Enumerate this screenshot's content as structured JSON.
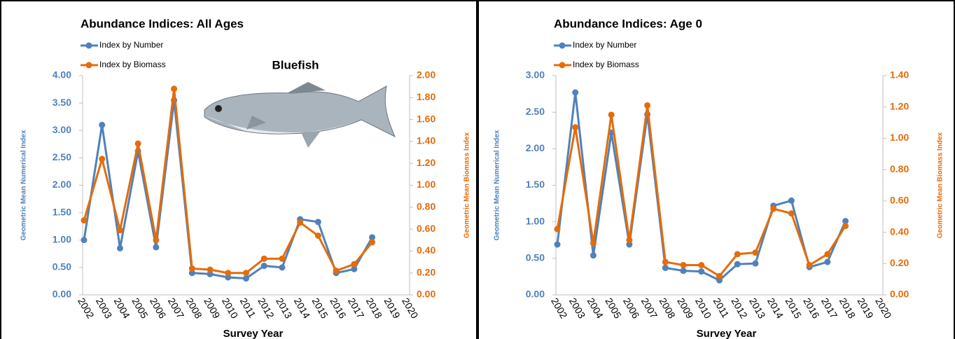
{
  "chart_data": [
    {
      "type": "line",
      "title": "Abundance Indices:  All Ages",
      "annotation": "Bluefish",
      "x_label": "Survey Year",
      "y_label": "Geometric Mean Numerical Index",
      "y2_label": "Geometric Mean Biomass Index",
      "categories": [
        "2002",
        "2003",
        "2004",
        "2005",
        "2006",
        "2007",
        "2008",
        "2009",
        "2010",
        "2011",
        "2012",
        "2013",
        "2014",
        "2015",
        "2016",
        "2017",
        "2018",
        "2019",
        "2020"
      ],
      "series": [
        {
          "name": "Index by Number",
          "color": "#4f81bd",
          "axis": "y",
          "values": [
            1.0,
            3.1,
            0.85,
            2.62,
            0.87,
            3.55,
            0.4,
            0.38,
            0.32,
            0.3,
            0.53,
            0.5,
            1.38,
            1.33,
            0.4,
            0.47,
            1.05,
            null,
            null
          ]
        },
        {
          "name": "Index by Biomass",
          "color": "#e46c0a",
          "axis": "y2",
          "values": [
            0.68,
            1.24,
            0.59,
            1.38,
            0.5,
            1.88,
            0.24,
            0.23,
            0.2,
            0.2,
            0.33,
            0.33,
            0.66,
            0.54,
            0.22,
            0.28,
            0.48,
            null,
            null
          ]
        }
      ],
      "ylim": [
        0,
        4
      ],
      "yticks": [
        {
          "value": 0,
          "label": "0.00"
        },
        {
          "value": 0.5,
          "label": "0.50"
        },
        {
          "value": 1,
          "label": "1.00"
        },
        {
          "value": 1.5,
          "label": "1.50"
        },
        {
          "value": 2,
          "label": "2.00"
        },
        {
          "value": 2.5,
          "label": "2.50"
        },
        {
          "value": 3,
          "label": "3.00"
        },
        {
          "value": 3.5,
          "label": "3.50"
        },
        {
          "value": 4,
          "label": "4.00"
        }
      ],
      "y2lim": [
        0,
        2
      ],
      "y2ticks": [
        {
          "value": 0,
          "label": "0.00"
        },
        {
          "value": 0.2,
          "label": "0.20"
        },
        {
          "value": 0.4,
          "label": "0.40"
        },
        {
          "value": 0.6,
          "label": "0.60"
        },
        {
          "value": 0.8,
          "label": "0.80"
        },
        {
          "value": 1,
          "label": "1.00"
        },
        {
          "value": 1.2,
          "label": "1.20"
        },
        {
          "value": 1.4,
          "label": "1.40"
        },
        {
          "value": 1.6,
          "label": "1.60"
        },
        {
          "value": 1.8,
          "label": "1.80"
        },
        {
          "value": 2,
          "label": "2.00"
        }
      ]
    },
    {
      "type": "line",
      "title": "Abundance Indices:  Age 0",
      "x_label": "Survey Year",
      "y_label": "Geometric Mean Numerical Index",
      "y2_label": "Geometric Mean Biomass Index",
      "categories": [
        "2002",
        "2003",
        "2004",
        "2005",
        "2006",
        "2007",
        "2008",
        "2009",
        "2010",
        "2011",
        "2012",
        "2013",
        "2014",
        "2015",
        "2016",
        "2017",
        "2018",
        "2019",
        "2020"
      ],
      "series": [
        {
          "name": "Index by Number",
          "color": "#4f81bd",
          "axis": "y",
          "values": [
            0.69,
            2.77,
            0.54,
            2.22,
            0.69,
            2.47,
            0.37,
            0.33,
            0.32,
            0.2,
            0.42,
            0.43,
            1.22,
            1.29,
            0.38,
            0.45,
            1.01,
            null,
            null
          ]
        },
        {
          "name": "Index by Biomass",
          "color": "#e46c0a",
          "axis": "y2",
          "values": [
            0.42,
            1.07,
            0.33,
            1.15,
            0.35,
            1.21,
            0.21,
            0.19,
            0.19,
            0.12,
            0.26,
            0.27,
            0.55,
            0.52,
            0.19,
            0.26,
            0.44,
            null,
            null
          ]
        }
      ],
      "ylim": [
        0,
        3
      ],
      "yticks": [
        {
          "value": 0,
          "label": "0.00"
        },
        {
          "value": 0.5,
          "label": "0.50"
        },
        {
          "value": 1,
          "label": "1.00"
        },
        {
          "value": 1.5,
          "label": "1.50"
        },
        {
          "value": 2,
          "label": "2.00"
        },
        {
          "value": 2.5,
          "label": "2.50"
        },
        {
          "value": 3,
          "label": "3.00"
        }
      ],
      "y2lim": [
        0,
        1.4
      ],
      "y2ticks": [
        {
          "value": 0,
          "label": "0.00"
        },
        {
          "value": 0.2,
          "label": "0.20"
        },
        {
          "value": 0.4,
          "label": "0.40"
        },
        {
          "value": 0.6,
          "label": "0.60"
        },
        {
          "value": 0.8,
          "label": "0.80"
        },
        {
          "value": 1,
          "label": "1.00"
        },
        {
          "value": 1.2,
          "label": "1.20"
        },
        {
          "value": 1.4,
          "label": "1.40"
        }
      ]
    }
  ]
}
